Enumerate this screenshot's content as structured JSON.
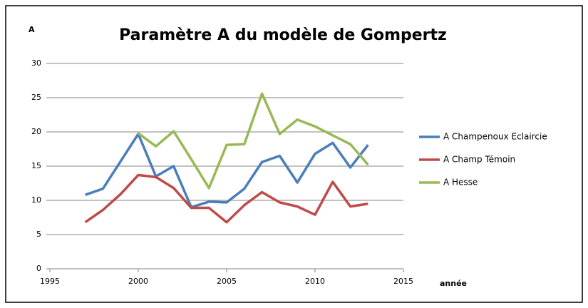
{
  "chart_data": {
    "type": "line",
    "title": "Paramètre A du modèle de Gompertz",
    "y_label": "A",
    "x_label": "année",
    "x": [
      1997,
      1998,
      1999,
      2000,
      2001,
      2002,
      2003,
      2004,
      2005,
      2006,
      2007,
      2008,
      2009,
      2010,
      2011,
      2012,
      2013
    ],
    "series": [
      {
        "name": "A Champenoux Eclaircie",
        "color": "#4a7ebb",
        "values": [
          10.8,
          11.7,
          15.7,
          19.7,
          13.5,
          15.0,
          9.0,
          9.8,
          9.7,
          11.7,
          15.6,
          16.5,
          12.6,
          16.8,
          18.4,
          14.8,
          18.1
        ]
      },
      {
        "name": "A Champ Témoin",
        "color": "#be4b48",
        "values": [
          6.8,
          8.6,
          10.9,
          13.7,
          13.4,
          11.8,
          8.9,
          8.9,
          6.8,
          9.3,
          11.2,
          9.7,
          9.1,
          7.9,
          12.7,
          9.1,
          9.5
        ]
      },
      {
        "name": "A Hesse",
        "color": "#98b954",
        "values": [
          null,
          null,
          null,
          19.8,
          17.9,
          20.1,
          16.0,
          11.8,
          18.1,
          18.2,
          25.6,
          19.7,
          21.8,
          20.8,
          19.5,
          18.2,
          15.2
        ]
      }
    ],
    "xlim": [
      1995,
      2015
    ],
    "xticks": [
      1995,
      2000,
      2005,
      2010,
      2015
    ],
    "ylim": [
      0,
      30
    ],
    "yticks": [
      0,
      5,
      10,
      15,
      20,
      25,
      30
    ],
    "grid": true,
    "legend": "right"
  }
}
